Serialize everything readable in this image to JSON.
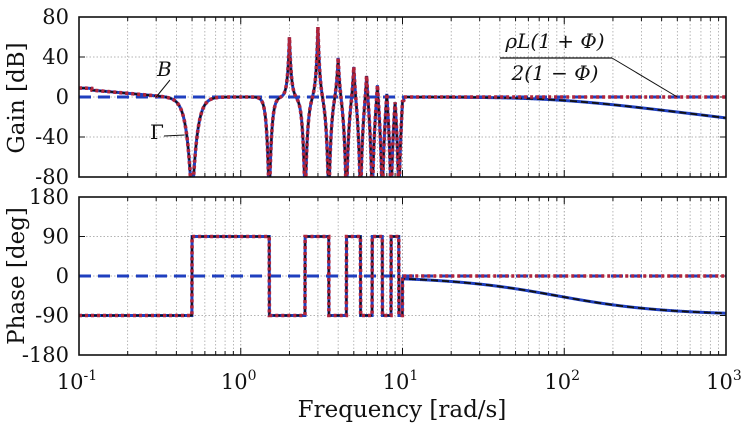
{
  "chart_data": [
    {
      "type": "line",
      "panel": "gain",
      "xscale": "log",
      "xlim": [
        0.1,
        1000
      ],
      "ylim": [
        -80,
        80
      ],
      "ylabel": "Gain [dB]",
      "yticks": [
        80,
        40,
        0,
        -40,
        -80
      ],
      "ytick_labels": [
        "80",
        "40",
        "0",
        "-40",
        "-80"
      ],
      "grid": true,
      "series": [
        {
          "name": "blue-solid",
          "color": "#1f3fbf",
          "style": "solid"
        },
        {
          "name": "black-dashed",
          "color": "#111111",
          "style": "dashed"
        },
        {
          "name": "red-dotted",
          "color": "#b0243c",
          "style": "dotted"
        },
        {
          "name": "blue-dashed",
          "color": "#1f3fbf",
          "style": "dashed"
        }
      ],
      "notches_x": [
        0.5,
        1.5,
        2.5,
        3.5,
        4.5,
        5.5,
        6.5,
        7.5,
        8.5,
        9.5
      ],
      "peaks_x": [
        1,
        2,
        3,
        4,
        5,
        6,
        7,
        8,
        9,
        10
      ],
      "annotations": [
        {
          "text": "B",
          "target_x": 0.3,
          "target_y": 0
        },
        {
          "text": "Γ",
          "target_x": 0.45,
          "target_y": -38
        },
        {
          "text": "ρL(1 + Φ)",
          "role": "numerator",
          "target_x": 500,
          "target_y": 0
        },
        {
          "text": "2(1 − Φ)",
          "role": "denominator"
        }
      ]
    },
    {
      "type": "line",
      "panel": "phase",
      "xscale": "log",
      "xlim": [
        0.1,
        1000
      ],
      "ylim": [
        -180,
        180
      ],
      "ylabel": "Phase [deg]",
      "xlabel": "Frequency [rad/s]",
      "yticks": [
        180,
        90,
        0,
        -90,
        -180
      ],
      "ytick_labels": [
        "180",
        "90",
        "0",
        "-90",
        "-180"
      ],
      "xticks": [
        0.1,
        1,
        10,
        100,
        1000
      ],
      "xtick_labels": [
        {
          "base": "10",
          "exp": "-1"
        },
        {
          "base": "10",
          "exp": "0"
        },
        {
          "base": "10",
          "exp": "1"
        },
        {
          "base": "10",
          "exp": "2"
        },
        {
          "base": "10",
          "exp": "3"
        }
      ],
      "grid": true,
      "square_wave_levels": [
        -90,
        90
      ],
      "switch_x": [
        0.5,
        1.5,
        2.5,
        3.5,
        4.5,
        5.5,
        6.5,
        7.5,
        8.5,
        9.5
      ]
    }
  ]
}
